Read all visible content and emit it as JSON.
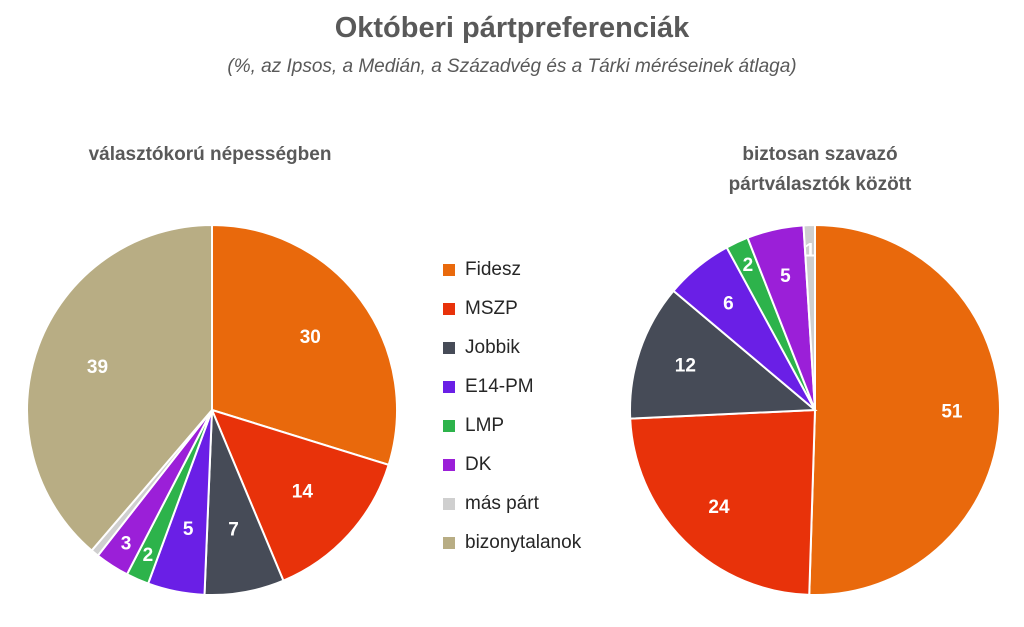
{
  "title": "Októberi pártpreferenciák",
  "subtitle": "(%, az Ipsos, a Medián, a Századvég és a Tárki méréseinek átlaga)",
  "chart_data": [
    {
      "type": "pie",
      "title": "választókorú népességben",
      "slices": [
        {
          "label": "Fidesz",
          "value": 30,
          "color": "#E9690C",
          "show_label": true
        },
        {
          "label": "MSZP",
          "value": 14,
          "color": "#E8320A",
          "show_label": true
        },
        {
          "label": "Jobbik",
          "value": 7,
          "color": "#464B57",
          "show_label": true
        },
        {
          "label": "E14-PM",
          "value": 5,
          "color": "#6A1FE6",
          "show_label": true
        },
        {
          "label": "LMP",
          "value": 2,
          "color": "#2DB34B",
          "show_label": true
        },
        {
          "label": "DK",
          "value": 3,
          "color": "#9B1FD8",
          "show_label": true
        },
        {
          "label": "más párt",
          "value": 0.7,
          "color": "#CFCFCF",
          "show_label": false
        },
        {
          "label": "bizonytalanok",
          "value": 39,
          "color": "#B8AD84",
          "show_label": true
        }
      ]
    },
    {
      "type": "pie",
      "title": "biztosan szavazó pártválasztók között",
      "title_lines": [
        "biztosan szavazó",
        "pártválasztók között"
      ],
      "slices": [
        {
          "label": "Fidesz",
          "value": 51,
          "color": "#E9690C",
          "show_label": true
        },
        {
          "label": "MSZP",
          "value": 24,
          "color": "#E8320A",
          "show_label": true
        },
        {
          "label": "Jobbik",
          "value": 12,
          "color": "#464B57",
          "show_label": true
        },
        {
          "label": "E14-PM",
          "value": 6,
          "color": "#6A1FE6",
          "show_label": true
        },
        {
          "label": "LMP",
          "value": 2,
          "color": "#2DB34B",
          "show_label": true
        },
        {
          "label": "DK",
          "value": 5,
          "color": "#9B1FD8",
          "show_label": true
        },
        {
          "label": "más párt",
          "value": 1,
          "color": "#CFCFCF",
          "show_label": true
        }
      ]
    }
  ],
  "legend": [
    {
      "label": "Fidesz",
      "color": "#E9690C"
    },
    {
      "label": "MSZP",
      "color": "#E8320A"
    },
    {
      "label": "Jobbik",
      "color": "#464B57"
    },
    {
      "label": "E14-PM",
      "color": "#6A1FE6"
    },
    {
      "label": "LMP",
      "color": "#2DB34B"
    },
    {
      "label": "DK",
      "color": "#9B1FD8"
    },
    {
      "label": "más párt",
      "color": "#CFCFCF"
    },
    {
      "label": "bizonytalanok",
      "color": "#B8AD84"
    }
  ],
  "legend_position": "center"
}
